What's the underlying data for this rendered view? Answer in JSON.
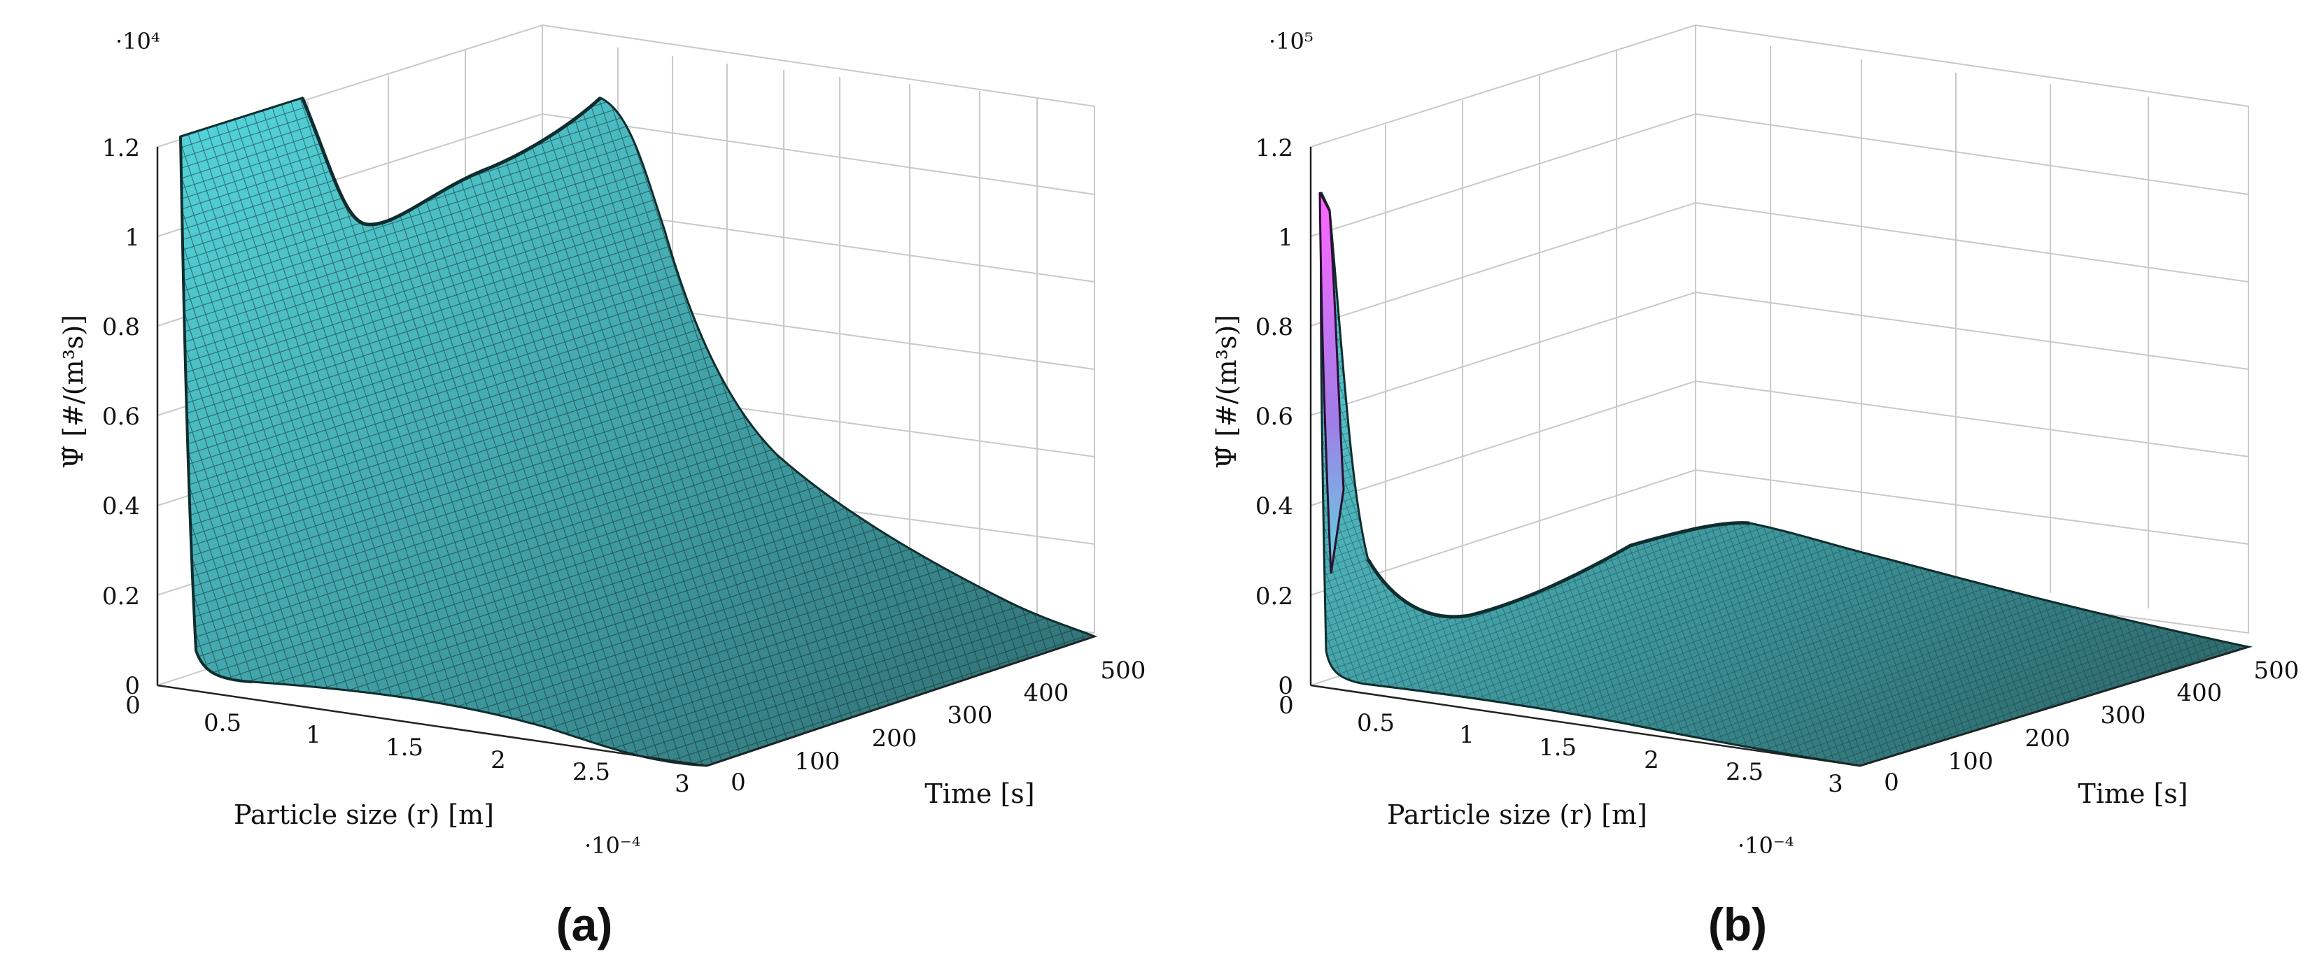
{
  "panels": [
    {
      "label": "(a)",
      "z_multiplier": "·10⁴",
      "x_multiplier": "·10⁻⁴",
      "ylabel": "Ψ̃ [#/(m³s)]",
      "xlabel": "Particle size (r) [m]",
      "tlabel": "Time [s]",
      "z_ticks": [
        "0",
        "0.2",
        "0.4",
        "0.6",
        "0.8",
        "1",
        "1.2"
      ],
      "x_ticks": [
        "0",
        "0.5",
        "1",
        "1.5",
        "2",
        "2.5",
        "3"
      ],
      "t_ticks": [
        "0",
        "100",
        "200",
        "300",
        "400",
        "500"
      ]
    },
    {
      "label": "(b)",
      "z_multiplier": "·10⁵",
      "x_multiplier": "·10⁻⁴",
      "ylabel": "Ψ̃ [#/(m³s)]",
      "xlabel": "Particle size (r) [m]",
      "tlabel": "Time [s]",
      "z_ticks": [
        "0",
        "0.2",
        "0.4",
        "0.6",
        "0.8",
        "1",
        "1.2"
      ],
      "x_ticks": [
        "0",
        "0.5",
        "1",
        "1.5",
        "2",
        "2.5",
        "3"
      ],
      "t_ticks": [
        "0",
        "100",
        "200",
        "300",
        "400",
        "500"
      ]
    }
  ],
  "chart_data": [
    {
      "type": "surface",
      "panel": "(a)",
      "x_axis": "Particle size (r)",
      "x_unit": "m",
      "x_scale_factor": 0.0001,
      "xlim": [
        0,
        3
      ],
      "t_axis": "Time",
      "t_unit": "s",
      "tlim": [
        0,
        500
      ],
      "z_axis": "Ψ̃",
      "z_unit": "#/(m³s)",
      "z_scale_factor": 10000,
      "zlim": [
        0,
        1.2
      ],
      "grid": true,
      "colormap": [
        "#ffffff",
        "#6fe7ee",
        "#2f6f70"
      ],
      "surface_samples": {
        "r": [
          0.05,
          0.15,
          0.5,
          1.0,
          1.5,
          2.0,
          2.5,
          3.0
        ],
        "t": [
          0,
          100,
          200,
          300,
          400,
          500
        ],
        "z": [
          [
            1.2,
            0.25,
            0.05,
            0.02,
            0.01,
            0.0
          ],
          [
            1.2,
            1.0,
            0.3,
            0.1,
            0.05,
            0.02
          ],
          [
            1.2,
            1.02,
            0.55,
            0.25,
            0.12,
            0.05
          ],
          [
            1.2,
            1.12,
            0.8,
            0.4,
            0.2,
            0.08
          ],
          [
            0.5,
            0.8,
            0.7,
            0.45,
            0.22,
            0.1
          ],
          [
            0.1,
            0.3,
            0.4,
            0.3,
            0.2,
            0.1
          ],
          [
            0.02,
            0.08,
            0.15,
            0.18,
            0.15,
            0.08
          ],
          [
            0.01,
            0.02,
            0.05,
            0.08,
            0.08,
            0.05
          ]
        ]
      }
    },
    {
      "type": "surface",
      "panel": "(b)",
      "x_axis": "Particle size (r)",
      "x_unit": "m",
      "x_scale_factor": 0.0001,
      "xlim": [
        0,
        3
      ],
      "t_axis": "Time",
      "t_unit": "s",
      "tlim": [
        0,
        500
      ],
      "z_axis": "Ψ̃",
      "z_unit": "#/(m³s)",
      "z_scale_factor": 100000,
      "zlim": [
        0,
        1.2
      ],
      "grid": true,
      "colormap": [
        "#ffffff",
        "#6fe7ee",
        "#2f6f70",
        "#ff66ff"
      ],
      "surface_samples": {
        "r": [
          0.02,
          0.15,
          0.5,
          1.0,
          1.5,
          2.0,
          2.5,
          3.0
        ],
        "t": [
          0,
          100,
          200,
          300,
          400,
          500
        ],
        "z": [
          [
            1.1,
            0.3,
            0.05,
            0.02,
            0.01,
            0.0
          ],
          [
            0.6,
            0.15,
            0.04,
            0.02,
            0.01,
            0.0
          ],
          [
            0.2,
            0.12,
            0.05,
            0.02,
            0.01,
            0.0
          ],
          [
            0.15,
            0.13,
            0.06,
            0.02,
            0.01,
            0.0
          ],
          [
            0.1,
            0.14,
            0.08,
            0.03,
            0.01,
            0.0
          ],
          [
            0.05,
            0.16,
            0.1,
            0.04,
            0.02,
            0.0
          ],
          [
            0.02,
            0.12,
            0.08,
            0.03,
            0.01,
            0.0
          ],
          [
            0.01,
            0.05,
            0.04,
            0.02,
            0.01,
            0.0
          ]
        ]
      }
    }
  ]
}
